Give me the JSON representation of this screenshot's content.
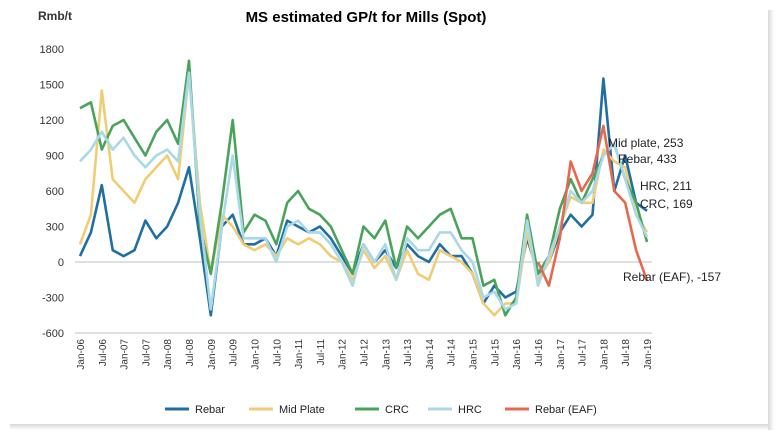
{
  "chart_data": {
    "type": "line",
    "title": "MS estimated GP/t for Mills (Spot)",
    "ylabel": "Rmb/t",
    "xlabel": "",
    "ylim": [
      -600,
      1800
    ],
    "yticks": [
      1800,
      1500,
      1200,
      900,
      600,
      300,
      0,
      -300,
      -600
    ],
    "grid": false,
    "legend": "bottom",
    "x_tick_labels": [
      "Jan-06",
      "Jul-06",
      "Jan-07",
      "Jul-07",
      "Jan-08",
      "Jul-08",
      "Jan-09",
      "Jul-09",
      "Jan-10",
      "Jul-10",
      "Jan-11",
      "Jul-11",
      "Jan-12",
      "Jul-12",
      "Jan-13",
      "Jul-13",
      "Jan-14",
      "Jul-14",
      "Jan-15",
      "Jul-15",
      "Jan-16",
      "Jul-16",
      "Jan-17",
      "Jul-17",
      "Jan-18",
      "Jul-18",
      "Jan-19"
    ],
    "x": [
      "Jan-06",
      "Apr-06",
      "Jul-06",
      "Oct-06",
      "Jan-07",
      "Apr-07",
      "Jul-07",
      "Oct-07",
      "Jan-08",
      "Apr-08",
      "Jul-08",
      "Oct-08",
      "Jan-09",
      "Apr-09",
      "Jul-09",
      "Oct-09",
      "Jan-10",
      "Apr-10",
      "Jul-10",
      "Oct-10",
      "Jan-11",
      "Apr-11",
      "Jul-11",
      "Oct-11",
      "Jan-12",
      "Apr-12",
      "Jul-12",
      "Oct-12",
      "Jan-13",
      "Apr-13",
      "Jul-13",
      "Oct-13",
      "Jan-14",
      "Apr-14",
      "Jul-14",
      "Oct-14",
      "Jan-15",
      "Apr-15",
      "Jul-15",
      "Oct-15",
      "Jan-16",
      "Apr-16",
      "Jul-16",
      "Oct-16",
      "Jan-17",
      "Apr-17",
      "Jul-17",
      "Oct-17",
      "Jan-18",
      "Apr-18",
      "Jul-18",
      "Oct-18",
      "Jan-19"
    ],
    "series": [
      {
        "name": "Rebar",
        "color": "#1f6fa3",
        "values": [
          50,
          250,
          650,
          100,
          50,
          100,
          350,
          200,
          300,
          500,
          800,
          200,
          -450,
          300,
          400,
          150,
          150,
          200,
          50,
          350,
          300,
          250,
          300,
          200,
          50,
          -100,
          150,
          0,
          100,
          -50,
          150,
          50,
          0,
          150,
          50,
          50,
          -100,
          -350,
          -200,
          -300,
          -250,
          200,
          -100,
          0,
          250,
          400,
          300,
          400,
          1550,
          600,
          900,
          500,
          433
        ]
      },
      {
        "name": "Mid Plate",
        "color": "#f0cd75",
        "values": [
          150,
          400,
          1450,
          700,
          600,
          500,
          700,
          800,
          900,
          700,
          1600,
          500,
          -100,
          400,
          300,
          150,
          100,
          150,
          50,
          200,
          150,
          200,
          150,
          50,
          0,
          -150,
          100,
          -50,
          50,
          -150,
          100,
          -100,
          -150,
          100,
          50,
          0,
          -100,
          -350,
          -450,
          -350,
          -350,
          250,
          -150,
          0,
          300,
          550,
          500,
          500,
          950,
          850,
          800,
          400,
          253
        ]
      },
      {
        "name": "CRC",
        "color": "#4aa35a",
        "values": [
          1300,
          1350,
          950,
          1150,
          1200,
          1050,
          900,
          1100,
          1200,
          1000,
          1700,
          300,
          -100,
          500,
          1200,
          250,
          400,
          350,
          150,
          500,
          600,
          450,
          400,
          300,
          100,
          -100,
          300,
          200,
          350,
          -50,
          300,
          200,
          300,
          400,
          450,
          200,
          200,
          -200,
          -150,
          -450,
          -300,
          400,
          -100,
          50,
          450,
          700,
          500,
          700,
          900,
          1000,
          700,
          500,
          169
        ]
      },
      {
        "name": "HRC",
        "color": "#a9d9e6",
        "values": [
          850,
          950,
          1100,
          950,
          1050,
          900,
          800,
          900,
          950,
          850,
          1600,
          400,
          -400,
          300,
          900,
          200,
          200,
          200,
          0,
          300,
          350,
          250,
          250,
          150,
          0,
          -200,
          150,
          0,
          150,
          -150,
          200,
          100,
          100,
          250,
          250,
          100,
          0,
          -300,
          -250,
          -400,
          -350,
          350,
          -200,
          50,
          300,
          600,
          500,
          600,
          900,
          1000,
          700,
          400,
          211
        ]
      },
      {
        "name": "Rebar (EAF)",
        "color": "#e4694f",
        "values": [
          null,
          null,
          null,
          null,
          null,
          null,
          null,
          null,
          null,
          null,
          null,
          null,
          null,
          null,
          null,
          null,
          null,
          null,
          null,
          null,
          null,
          null,
          null,
          null,
          null,
          null,
          null,
          null,
          null,
          null,
          null,
          null,
          null,
          null,
          null,
          null,
          null,
          null,
          null,
          null,
          null,
          null,
          0,
          -200,
          200,
          850,
          600,
          750,
          1150,
          600,
          500,
          100,
          -157
        ]
      }
    ],
    "annotations": [
      "Mid plate, 253",
      "Rebar, 433",
      "HRC, 211",
      "CRC, 169",
      "Rebar (EAF), -157"
    ]
  }
}
